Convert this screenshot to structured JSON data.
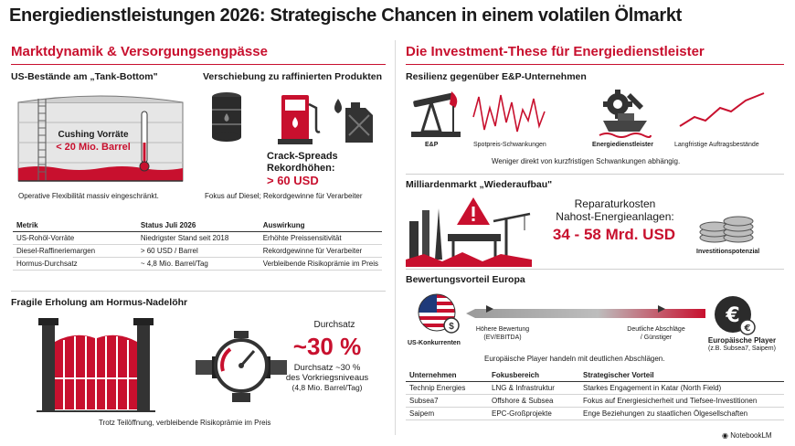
{
  "title": "Energiedienstleistungen 2026: Strategische Chancen in einem volatilen Ölmarkt",
  "left": {
    "heading": "Marktdynamik & Versorgungsengpässe",
    "tank": {
      "heading": "US-Bestände am „Tank-Bottom\"",
      "label1": "Cushing Vorräte",
      "label2": "< 20 Mio. Barrel",
      "caption": "Operative Flexibilität massiv eingeschränkt."
    },
    "products": {
      "heading": "Verschiebung zu raffinierten Produkten",
      "crack1": "Crack-Spreads",
      "crack2": "Rekordhöhen:",
      "crack3": "> 60 USD",
      "caption": "Fokus auf Diesel; Rekordgewinne für Verarbeiter"
    },
    "table": {
      "headers": [
        "Metrik",
        "Status Juli 2026",
        "Auswirkung"
      ],
      "rows": [
        [
          "US-Rohöl-Vorräte",
          "Niedrigster Stand seit 2018",
          "Erhöhte Preissensitivität"
        ],
        [
          "Diesel-Raffineriemargen",
          "> 60 USD / Barrel",
          "Rekordgewinne für Verarbeiter"
        ],
        [
          "Hormus-Durchsatz",
          "~ 4,8 Mio. Barrel/Tag",
          "Verbleibende Risikoprämie im Preis"
        ]
      ]
    },
    "hormuz": {
      "heading": "Fragile Erholung am Hormus-Nadelöhr",
      "label_top": "Durchsatz",
      "big": "~30 %",
      "line1": "Durchsatz ~30 %",
      "line2": "des Vorkriegsniveaus",
      "line3": "(4,8 Mio. Barrel/Tag)",
      "caption": "Trotz Teilöffnung, verbleibende Risikoprämie im Preis"
    }
  },
  "right": {
    "heading": "Die Investment-These für Energiedienstleister",
    "resilience": {
      "heading": "Resilienz gegenüber E&P-Unternehmen",
      "ep": "E&P",
      "spot": "Spotpreis-Schwankungen",
      "service": "Energiedienstleister",
      "backlog": "Langfristige Auftragsbestände",
      "caption": "Weniger direkt von kurzfristigen Schwankungen abhängig."
    },
    "rebuild": {
      "heading": "Milliardenmarkt „Wiederaufbau\"",
      "line1": "Reparaturkosten",
      "line2": "Nahost-Energieanlagen:",
      "value": "34 - 58 Mrd. USD",
      "potential": "Investitionspotenzial"
    },
    "valuation": {
      "heading": "Bewertungsvorteil Europa",
      "us": "US-Konkurrenten",
      "higher1": "Höhere Bewertung",
      "higher2": "(EV/EBITDA)",
      "lower1": "Deutliche Abschläge",
      "lower2": "/ Günstiger",
      "eu1": "Europäische Player",
      "eu2": "(z.B. Subsea7, Saipem)",
      "caption": "Europäische Player handeln mit deutlichen Abschlägen."
    },
    "table": {
      "headers": [
        "Unternehmen",
        "Fokusbereich",
        "Strategischer Vorteil"
      ],
      "rows": [
        [
          "Technip Energies",
          "LNG & Infrastruktur",
          "Starkes Engagement in Katar (North Field)"
        ],
        [
          "Subsea7",
          "Offshore & Subsea",
          "Fokus auf Energiesicherheit und Tiefsee-Investitionen"
        ],
        [
          "Saipem",
          "EPC-Großprojekte",
          "Enge Beziehungen zu staatlichen Ölgesellschaften"
        ]
      ]
    }
  },
  "footer": "NotebookLM",
  "colors": {
    "accent": "#c8102e",
    "dark": "#333333"
  }
}
